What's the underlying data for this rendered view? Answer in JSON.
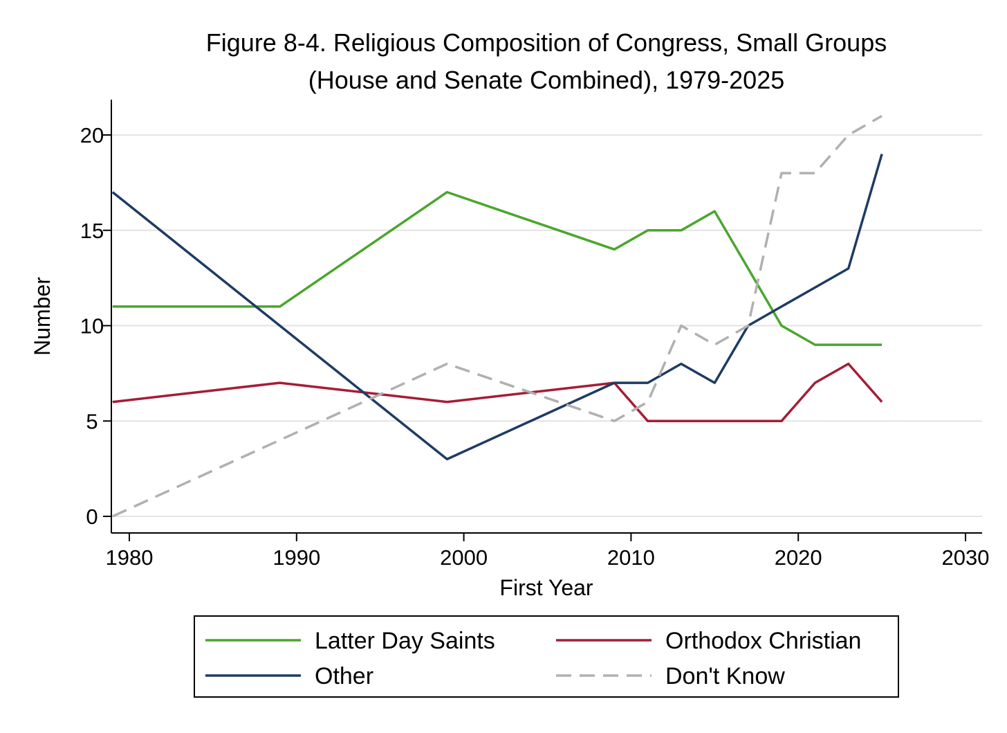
{
  "chart_data": {
    "type": "line",
    "title": [
      "Figure 8-4. Religious Composition of Congress, Small Groups",
      "(House and Senate Combined), 1979-2025"
    ],
    "xlabel": "First Year",
    "ylabel": "Number",
    "xlim": [
      1978,
      2031
    ],
    "ylim": [
      -0.8,
      22
    ],
    "xticks": [
      1980,
      1990,
      2000,
      2010,
      2020,
      2030
    ],
    "yticks": [
      0,
      5,
      10,
      15,
      20
    ],
    "grid": "horizontal",
    "legend_position": "bottom",
    "series": [
      {
        "name": "Latter Day Saints",
        "color": "#4aa62c",
        "dash": "solid",
        "x": [
          1979,
          1989,
          1999,
          2009,
          2011,
          2013,
          2015,
          2017,
          2019,
          2021,
          2023,
          2025
        ],
        "y": [
          11,
          11,
          17,
          14,
          15,
          15,
          16,
          13,
          10,
          9,
          9,
          9
        ]
      },
      {
        "name": "Orthodox Christian",
        "color": "#a51d36",
        "dash": "solid",
        "x": [
          1979,
          1989,
          1999,
          2009,
          2011,
          2013,
          2015,
          2017,
          2019,
          2021,
          2023,
          2025
        ],
        "y": [
          6,
          7,
          6,
          7,
          5,
          5,
          5,
          5,
          5,
          7,
          8,
          6
        ]
      },
      {
        "name": "Other",
        "color": "#1e3b63",
        "dash": "solid",
        "x": [
          1979,
          1989,
          1999,
          2009,
          2011,
          2013,
          2015,
          2017,
          2019,
          2021,
          2023,
          2025
        ],
        "y": [
          17,
          10,
          3,
          7,
          7,
          8,
          7,
          10,
          11,
          12,
          13,
          19
        ]
      },
      {
        "name": "Don't Know",
        "color": "#b0b0b0",
        "dash": "dashed",
        "x": [
          1979,
          1989,
          1999,
          2009,
          2011,
          2013,
          2015,
          2017,
          2019,
          2021,
          2023,
          2025
        ],
        "y": [
          0,
          4,
          8,
          5,
          6,
          10,
          9,
          10,
          18,
          18,
          20,
          21
        ]
      }
    ]
  }
}
